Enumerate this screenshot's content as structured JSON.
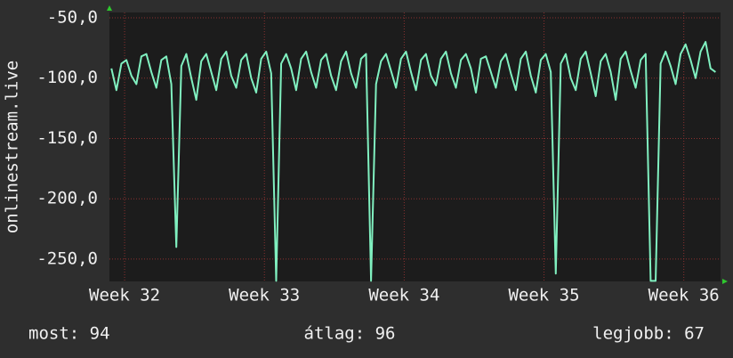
{
  "chart_data": {
    "type": "line",
    "ylabel": "onlinestream.live",
    "x": [
      0.1,
      0.35,
      0.6,
      0.85,
      1.1,
      1.35,
      1.6,
      1.85,
      2.1,
      2.35,
      2.6,
      2.85,
      3.1,
      3.35,
      3.6,
      3.85,
      4.1,
      4.35,
      4.6,
      4.85,
      5.1,
      5.35,
      5.6,
      5.85,
      6.1,
      6.35,
      6.6,
      6.85,
      7.1,
      7.35,
      7.6,
      7.85,
      8.1,
      8.35,
      8.6,
      8.85,
      9.1,
      9.35,
      9.6,
      9.85,
      10.1,
      10.35,
      10.6,
      10.85,
      11.1,
      11.35,
      11.6,
      11.85,
      12.1,
      12.35,
      12.6,
      12.85,
      13.1,
      13.35,
      13.6,
      13.85,
      14.1,
      14.35,
      14.6,
      14.85,
      15.1,
      15.35,
      15.6,
      15.85,
      16.1,
      16.35,
      16.6,
      16.85,
      17.1,
      17.35,
      17.6,
      17.85,
      18.1,
      18.35,
      18.6,
      18.85,
      19.1,
      19.35,
      19.6,
      19.85,
      20.1,
      20.35,
      20.6,
      20.85,
      21.1,
      21.35,
      21.6,
      21.85,
      22.1,
      22.35,
      22.6,
      22.85,
      23.1,
      23.35,
      23.6,
      23.85,
      24.1,
      24.35,
      24.6,
      24.85,
      25.1,
      25.35,
      25.6,
      25.85,
      26.1,
      26.35,
      26.6,
      26.85,
      27.1,
      27.35,
      27.6,
      27.85,
      28.1,
      28.35,
      28.6,
      28.85,
      29.1,
      29.35,
      29.6,
      29.85,
      30.1,
      30.35
    ],
    "series": [
      {
        "name": "onlinestream.live",
        "color": "#80f0c0",
        "values": [
          -92,
          -110,
          -88,
          -85,
          -98,
          -105,
          -82,
          -80,
          -95,
          -108,
          -85,
          -82,
          -105,
          -240,
          -90,
          -80,
          -100,
          -118,
          -86,
          -80,
          -95,
          -110,
          -84,
          -78,
          -98,
          -108,
          -85,
          -80,
          -100,
          -112,
          -84,
          -78,
          -96,
          -268,
          -88,
          -80,
          -92,
          -110,
          -84,
          -78,
          -95,
          -108,
          -85,
          -80,
          -98,
          -110,
          -86,
          -78,
          -96,
          -108,
          -84,
          -80,
          -268,
          -105,
          -86,
          -80,
          -94,
          -108,
          -84,
          -78,
          -95,
          -110,
          -85,
          -80,
          -98,
          -106,
          -84,
          -78,
          -96,
          -108,
          -85,
          -80,
          -92,
          -112,
          -84,
          -82,
          -95,
          -108,
          -86,
          -80,
          -96,
          -110,
          -84,
          -78,
          -98,
          -112,
          -85,
          -80,
          -95,
          -262,
          -88,
          -80,
          -100,
          -110,
          -84,
          -78,
          -96,
          -115,
          -86,
          -80,
          -95,
          -118,
          -84,
          -78,
          -94,
          -108,
          -85,
          -80,
          -268,
          -268,
          -88,
          -78,
          -90,
          -105,
          -80,
          -72,
          -85,
          -100,
          -78,
          -70,
          -92,
          -95
        ]
      }
    ],
    "xlim": [
      0,
      30.6
    ],
    "xticks": [
      {
        "value": 0.76,
        "label": "Week 32"
      },
      {
        "value": 7.76,
        "label": "Week 33"
      },
      {
        "value": 14.76,
        "label": "Week 34"
      },
      {
        "value": 21.76,
        "label": "Week 35"
      },
      {
        "value": 28.76,
        "label": "Week 36"
      }
    ],
    "ylim": [
      -268.5,
      -45.6
    ],
    "yticks": [
      {
        "value": -50,
        "label": "-50,0"
      },
      {
        "value": -100,
        "label": "-100,0"
      },
      {
        "value": -150,
        "label": "-150,0"
      },
      {
        "value": -200,
        "label": "-200,0"
      },
      {
        "value": -250,
        "label": "-250,0"
      }
    ],
    "grid": true,
    "stats": [
      "most: 94",
      "átlag: 96",
      "legjobb: 67"
    ]
  }
}
